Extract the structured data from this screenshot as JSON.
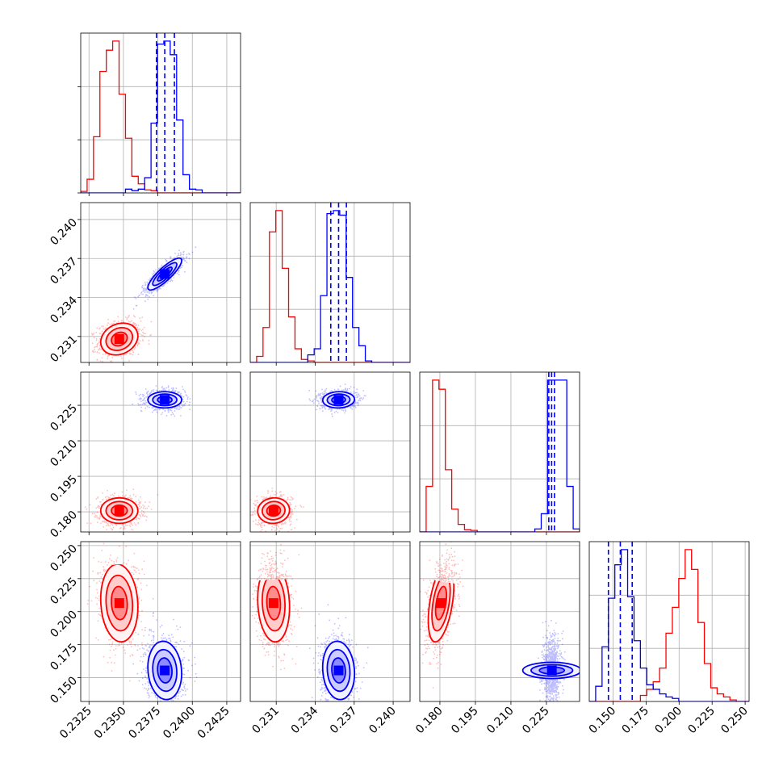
{
  "chart_data": {
    "type": "corner",
    "grid": true,
    "colors": {
      "red": "#ff0000",
      "blue": "#0000ff",
      "grid": "#b0b0b0"
    },
    "parameters": [
      {
        "range": [
          0.2319,
          0.2435
        ],
        "ticks": [
          "0.2325",
          "0.2350",
          "0.2375",
          "0.2400",
          "0.2425"
        ]
      },
      {
        "range": [
          0.229,
          0.2413
        ],
        "ticks": [
          "0.231",
          "0.234",
          "0.237",
          "0.240"
        ]
      },
      {
        "range": [
          0.1715,
          0.239
        ],
        "ticks": [
          "0.180",
          "0.195",
          "0.210",
          "0.225"
        ]
      },
      {
        "range": [
          0.132,
          0.253
        ],
        "ticks": [
          "0.150",
          "0.175",
          "0.200",
          "0.225",
          "0.250"
        ]
      }
    ],
    "series": [
      {
        "color": "#ff0000",
        "mean": [
          0.2347,
          0.2308,
          0.1805,
          0.2065
        ],
        "sd": [
          0.00055,
          0.0005,
          0.0022,
          0.012
        ],
        "corr": {
          "0-1": 0.2,
          "0-2": 0.0,
          "0-3": -0.1,
          "1-2": 0.05,
          "1-3": -0.1,
          "2-3": 0.45
        },
        "quantiles": []
      },
      {
        "color": "#0000ff",
        "mean": [
          0.238,
          0.2358,
          0.2273,
          0.1555
        ],
        "sd": [
          0.0005,
          0.0005,
          0.0014,
          0.009
        ],
        "corr": {
          "0-1": 0.85,
          "0-2": 0.0,
          "0-3": -0.1,
          "1-2": 0.05,
          "1-3": -0.1,
          "2-3": 0.0
        },
        "quantiles": [
          [
            0.2374,
            0.238,
            0.2387
          ],
          [
            0.2352,
            0.2358,
            0.2364
          ],
          [
            0.226,
            0.2272,
            0.2284
          ],
          [
            0.1465,
            0.1555,
            0.1645
          ]
        ]
      }
    ],
    "histograms": [
      {
        "bins": [
          0.2319,
          0.2435,
          25
        ],
        "red": [
          0.01,
          0.09,
          0.37,
          0.8,
          0.94,
          1.0,
          0.65,
          0.36,
          0.11,
          0.06,
          0.02,
          0.015,
          0.0,
          0.0,
          0.0,
          0.0,
          0.0,
          0.0,
          0.0,
          0.0,
          0.0,
          0.0,
          0.0,
          0.0,
          0.0
        ],
        "blue": [
          0.0,
          0.0,
          0.0,
          0.0,
          0.0,
          0.0,
          0.0,
          0.025,
          0.015,
          0.025,
          0.1,
          0.46,
          0.98,
          1.0,
          0.91,
          0.48,
          0.12,
          0.025,
          0.02,
          0.0,
          0.0,
          0.0,
          0.0,
          0.0,
          0.0
        ]
      },
      {
        "bins": [
          0.229,
          0.2413,
          25
        ],
        "red": [
          0.0,
          0.04,
          0.23,
          0.86,
          1.0,
          0.62,
          0.3,
          0.09,
          0.02,
          0.01,
          0.0,
          0.0,
          0.0,
          0.0,
          0.0,
          0.0,
          0.0,
          0.0,
          0.0,
          0.0,
          0.0,
          0.0,
          0.0,
          0.0,
          0.0
        ],
        "blue": [
          0.0,
          0.0,
          0.0,
          0.0,
          0.0,
          0.0,
          0.0,
          0.0,
          0.0,
          0.05,
          0.09,
          0.44,
          0.98,
          1.0,
          0.97,
          0.56,
          0.23,
          0.11,
          0.01,
          0.0,
          0.0,
          0.0,
          0.0,
          0.0,
          0.0
        ]
      },
      {
        "bins": [
          0.1715,
          0.239,
          25
        ],
        "red": [
          0.0,
          0.3,
          1.0,
          0.94,
          0.41,
          0.15,
          0.05,
          0.015,
          0.01,
          0.0,
          0.0,
          0.0,
          0.0,
          0.0,
          0.0,
          0.0,
          0.0,
          0.0,
          0.0,
          0.0,
          0.0,
          0.0,
          0.0,
          0.0,
          0.0
        ],
        "blue": [
          0.0,
          0.0,
          0.0,
          0.0,
          0.0,
          0.0,
          0.0,
          0.0,
          0.0,
          0.0,
          0.0,
          0.0,
          0.0,
          0.0,
          0.0,
          0.0,
          0.0,
          0.0,
          0.02,
          0.12,
          1.0,
          1.0,
          1.0,
          0.3,
          0.02
        ]
      },
      {
        "bins": [
          0.132,
          0.253,
          25
        ],
        "red": [
          0.0,
          0.0,
          0.0,
          0.0,
          0.0,
          0.0,
          0.0,
          0.0,
          0.04,
          0.08,
          0.13,
          0.22,
          0.45,
          0.62,
          0.81,
          1.0,
          0.87,
          0.52,
          0.25,
          0.09,
          0.05,
          0.03,
          0.01,
          0.0,
          0.0
        ],
        "blue": [
          0.0,
          0.1,
          0.36,
          0.68,
          0.9,
          1.0,
          0.69,
          0.4,
          0.22,
          0.11,
          0.08,
          0.05,
          0.03,
          0.02,
          0.0,
          0.0,
          0.0,
          0.0,
          0.0,
          0.0,
          0.0,
          0.0,
          0.0,
          0.0,
          0.0
        ]
      }
    ]
  }
}
